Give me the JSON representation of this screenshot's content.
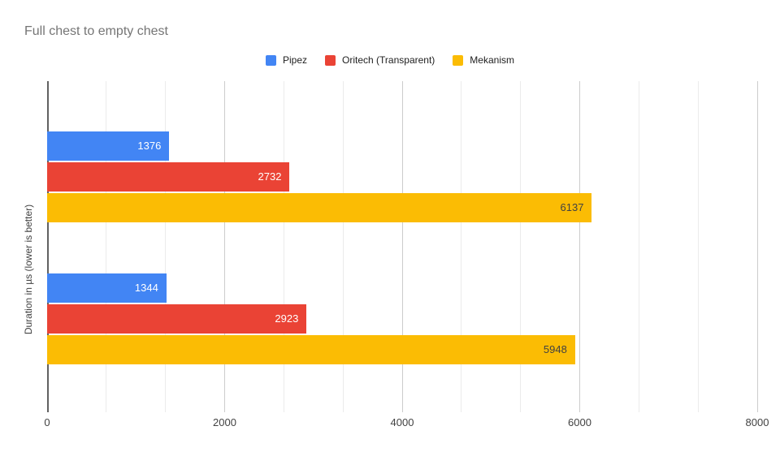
{
  "title": "Full chest to empty chest",
  "chart_data": {
    "type": "bar",
    "orientation": "horizontal",
    "title": "Full chest to empty chest",
    "xlabel": "",
    "ylabel": "Duration in µs (lower is better)",
    "xlim": [
      0,
      8000
    ],
    "x_ticks": [
      "0",
      "2000",
      "4000",
      "6000",
      "8000"
    ],
    "x_tick_values": [
      0,
      2000,
      4000,
      6000,
      8000
    ],
    "minor_gridline_step": 666.67,
    "grid": true,
    "legend_position": "top-center",
    "categories": [
      "",
      ""
    ],
    "series": [
      {
        "name": "Pipez",
        "color": "#4285F4",
        "label_color": "#ffffff",
        "values": [
          1376,
          1344
        ]
      },
      {
        "name": "Oritech (Transparent)",
        "color": "#EA4335",
        "label_color": "#ffffff",
        "values": [
          2732,
          2923
        ]
      },
      {
        "name": "Mekanism",
        "color": "#FBBC04",
        "label_color": "#424242",
        "values": [
          6137,
          5948
        ]
      }
    ]
  },
  "colors": {
    "background": "#ffffff",
    "title_text": "#757575",
    "axis_text": "#424242",
    "legend_text": "#212121",
    "major_gridline": "#cccccc",
    "minor_gridline": "#ebebeb",
    "baseline": "#616161"
  }
}
